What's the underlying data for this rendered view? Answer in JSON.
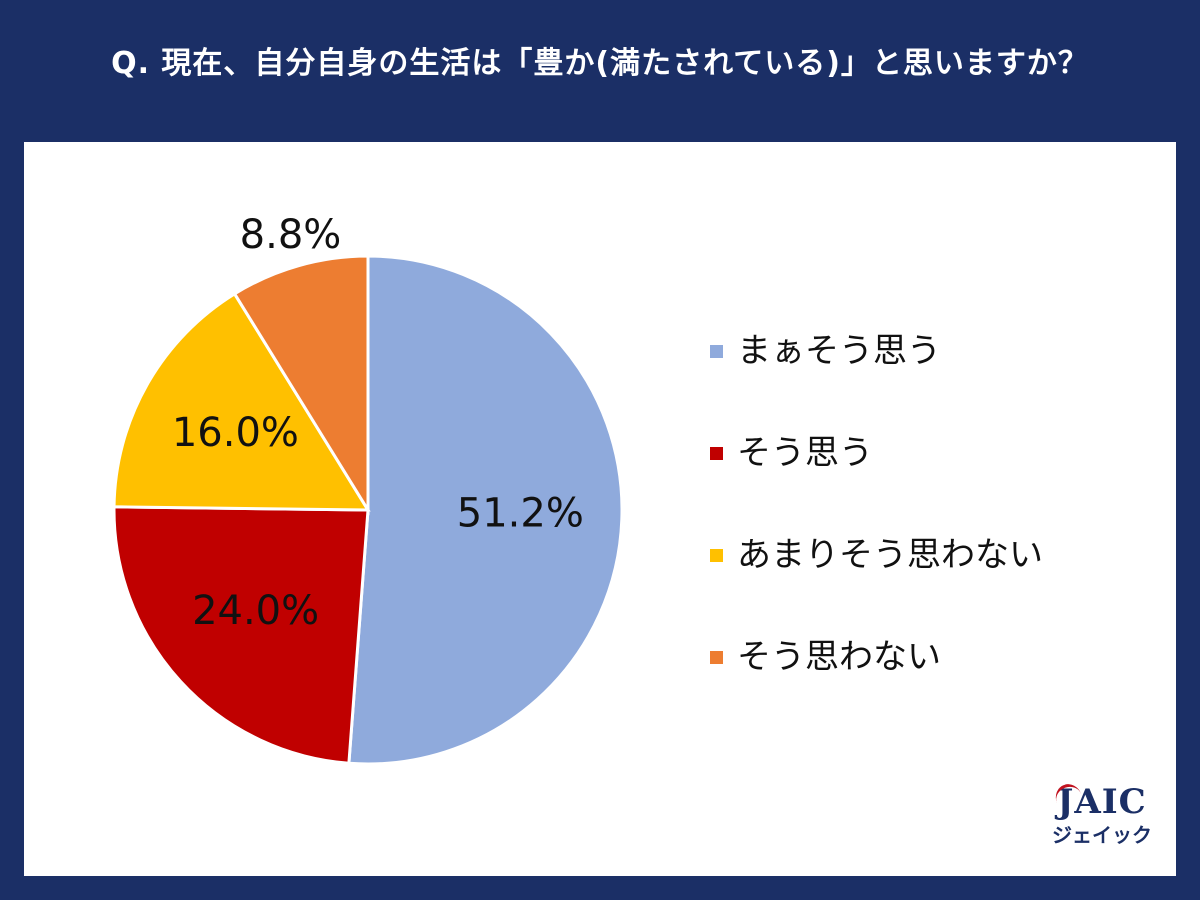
{
  "question": "Q. 現在、自分自身の生活は「豊か(満たされている)」と思いますか？",
  "chart_data": {
    "type": "pie",
    "title": "",
    "slices": [
      {
        "label": "まぁそう思う",
        "value": 51.2,
        "display": "51.2%",
        "color": "#8faadc"
      },
      {
        "label": "そう思う",
        "value": 24.0,
        "display": "24.0%",
        "color": "#c00000"
      },
      {
        "label": "あまりそう思わない",
        "value": 16.0,
        "display": "16.0%",
        "color": "#ffc000"
      },
      {
        "label": "そう思わない",
        "value": 8.8,
        "display": "8.8%",
        "color": "#ed7d31"
      }
    ],
    "legend_position": "right"
  },
  "legend": [
    {
      "label": "まぁそう思う",
      "color": "#8faadc"
    },
    {
      "label": "そう思う",
      "color": "#c00000"
    },
    {
      "label": "あまりそう思わない",
      "color": "#ffc000"
    },
    {
      "label": "そう思わない",
      "color": "#ed7d31"
    }
  ],
  "logo": {
    "main": "JAIC",
    "sub": "ジェイック"
  }
}
